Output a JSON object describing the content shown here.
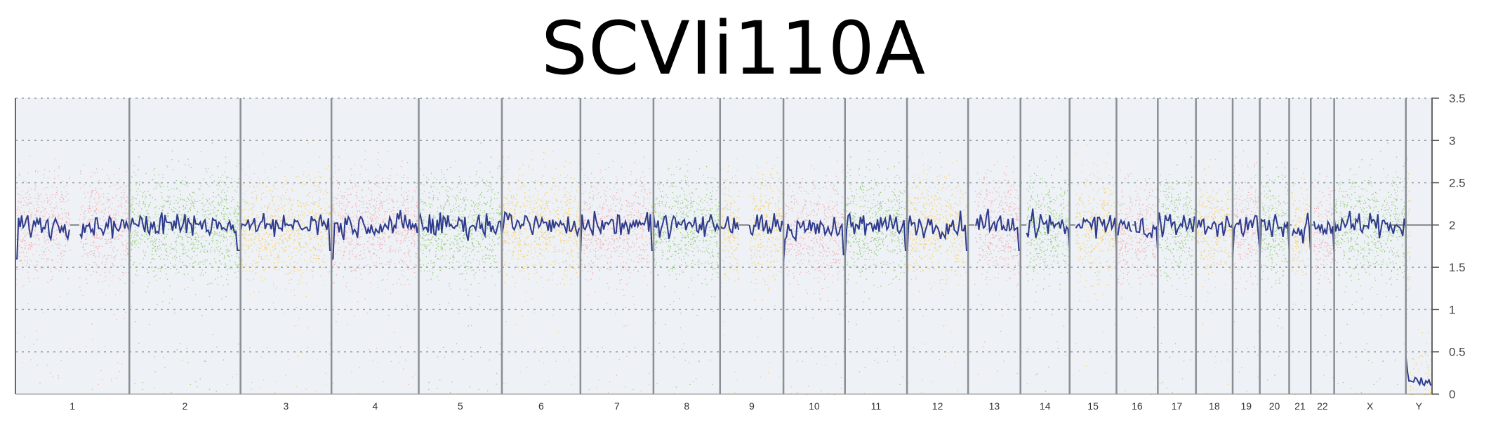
{
  "chart_data": {
    "type": "scatter",
    "title": "SCVIi110A",
    "xlabel": "",
    "ylabel": "",
    "ylim": [
      0,
      3.5
    ],
    "yticks": [
      "3.5",
      "3",
      "2.5",
      "2",
      "1.5",
      "1",
      "0.5",
      "0"
    ],
    "grid": true,
    "baseline": 2,
    "colors": {
      "pink": "#f2a6a6",
      "green": "#8cc66e",
      "yellow": "#f7c85a",
      "line": "#2e3a8c",
      "background": "#eef2f6"
    },
    "categories": [
      "1",
      "2",
      "3",
      "4",
      "5",
      "6",
      "7",
      "8",
      "9",
      "10",
      "11",
      "12",
      "13",
      "14",
      "15",
      "16",
      "17",
      "18",
      "19",
      "20",
      "21",
      "22",
      "X",
      "Y"
    ],
    "chromosomes": [
      {
        "label": "1",
        "len": 248,
        "color": "pink",
        "cn": 2.0
      },
      {
        "label": "2",
        "len": 242,
        "color": "green",
        "cn": 2.0
      },
      {
        "label": "3",
        "len": 198,
        "color": "yellow",
        "cn": 2.0
      },
      {
        "label": "4",
        "len": 190,
        "color": "pink",
        "cn": 2.0
      },
      {
        "label": "5",
        "len": 181,
        "color": "green",
        "cn": 2.0
      },
      {
        "label": "6",
        "len": 171,
        "color": "yellow",
        "cn": 2.0
      },
      {
        "label": "7",
        "len": 159,
        "color": "pink",
        "cn": 2.0
      },
      {
        "label": "8",
        "len": 145,
        "color": "green",
        "cn": 2.0
      },
      {
        "label": "9",
        "len": 138,
        "color": "yellow",
        "cn": 2.0
      },
      {
        "label": "10",
        "len": 134,
        "color": "pink",
        "cn": 1.95
      },
      {
        "label": "11",
        "len": 135,
        "color": "green",
        "cn": 2.0
      },
      {
        "label": "12",
        "len": 133,
        "color": "yellow",
        "cn": 2.0
      },
      {
        "label": "13",
        "len": 114,
        "color": "pink",
        "cn": 2.0
      },
      {
        "label": "14",
        "len": 107,
        "color": "green",
        "cn": 2.0
      },
      {
        "label": "15",
        "len": 102,
        "color": "yellow",
        "cn": 2.0
      },
      {
        "label": "16",
        "len": 90,
        "color": "pink",
        "cn": 1.95
      },
      {
        "label": "17",
        "len": 83,
        "color": "green",
        "cn": 2.0
      },
      {
        "label": "18",
        "len": 80,
        "color": "yellow",
        "cn": 2.0
      },
      {
        "label": "19",
        "len": 59,
        "color": "pink",
        "cn": 2.0
      },
      {
        "label": "20",
        "len": 64,
        "color": "green",
        "cn": 2.0
      },
      {
        "label": "21",
        "len": 47,
        "color": "yellow",
        "cn": 1.95
      },
      {
        "label": "22",
        "len": 51,
        "color": "pink",
        "cn": 1.95
      },
      {
        "label": "X",
        "len": 156,
        "color": "green",
        "cn": 2.0
      },
      {
        "label": "Y",
        "len": 57,
        "color": "yellow",
        "cn": 0.1
      }
    ]
  }
}
